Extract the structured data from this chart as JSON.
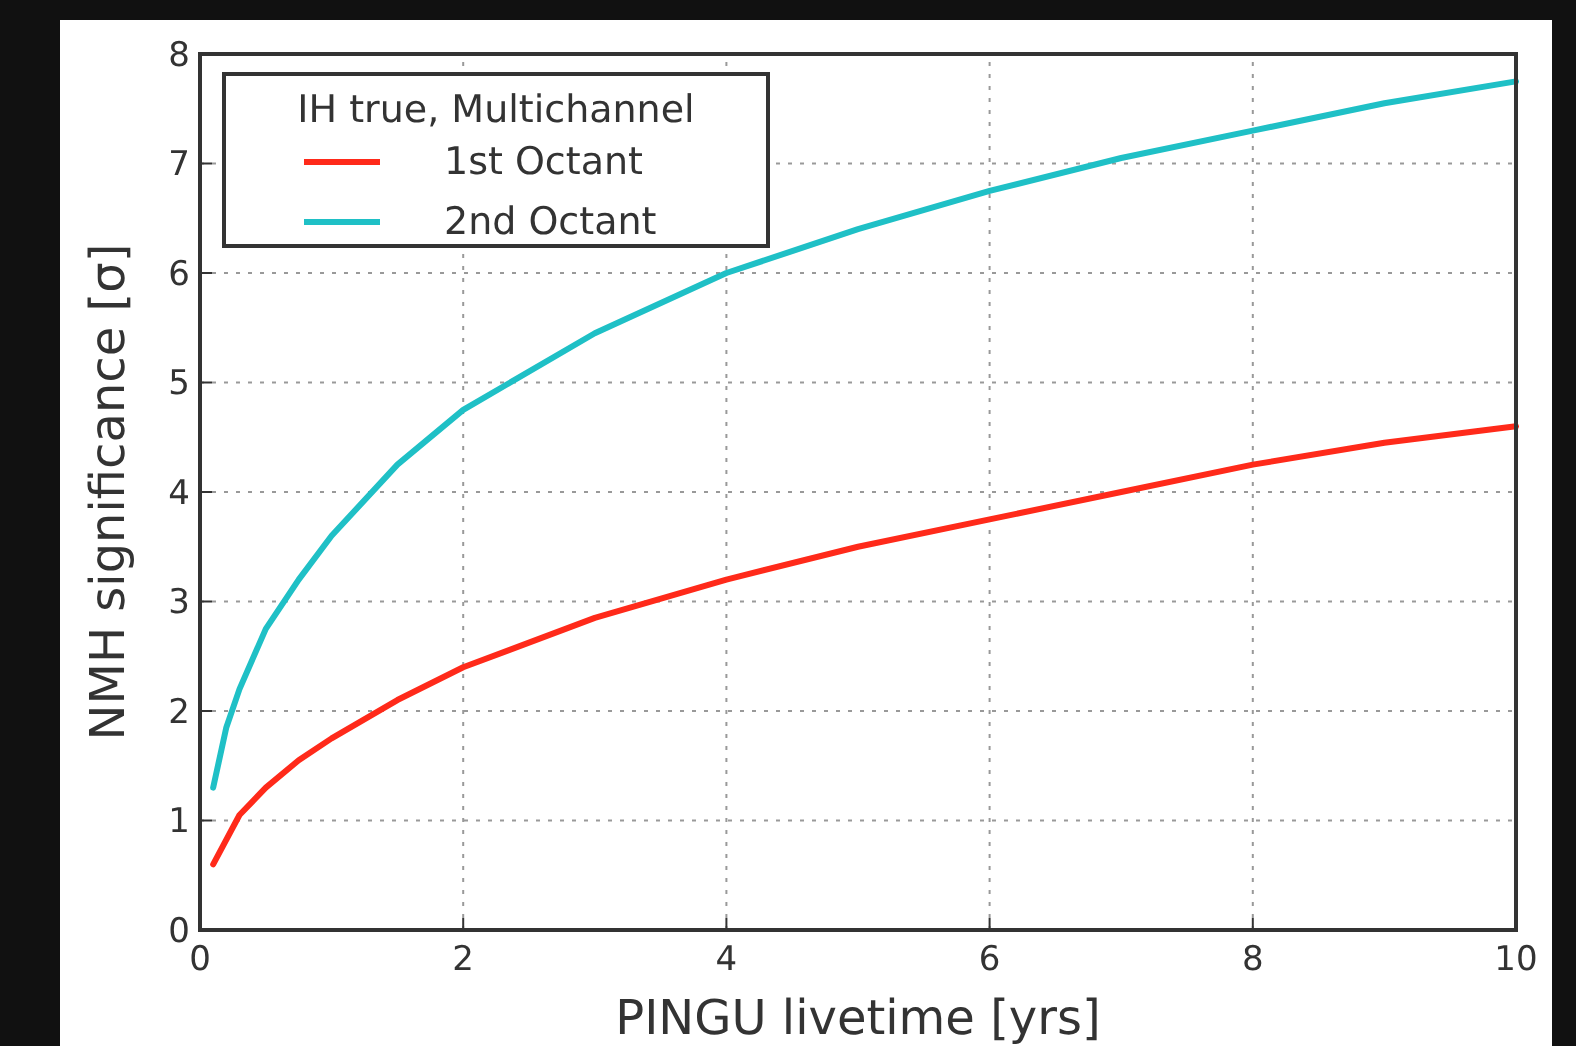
{
  "chart_data": {
    "type": "line",
    "xlabel": "PINGU livetime [yrs]",
    "ylabel": "NMH significance [σ]",
    "legend_title": "IH true, Multichannel",
    "legend": "top left",
    "grid": true,
    "line_style": "solid",
    "marker": "none",
    "xlim": [
      0,
      10
    ],
    "ylim": [
      0,
      8
    ],
    "xticks": [
      0,
      2,
      4,
      6,
      8,
      10
    ],
    "yticks": [
      0,
      1,
      2,
      3,
      4,
      5,
      6,
      7,
      8
    ],
    "series": [
      {
        "name": "1st Octant",
        "color": "#ff2a1a",
        "x": [
          0.1,
          0.3,
          0.5,
          0.75,
          1,
          1.5,
          2,
          3,
          4,
          5,
          6,
          7,
          8,
          9,
          10
        ],
        "values": [
          0.6,
          1.05,
          1.3,
          1.55,
          1.75,
          2.1,
          2.4,
          2.85,
          3.2,
          3.5,
          3.75,
          4.0,
          4.25,
          4.45,
          4.6
        ]
      },
      {
        "name": "2nd Octant",
        "color": "#1fc0c6",
        "x": [
          0.1,
          0.2,
          0.3,
          0.5,
          0.75,
          1,
          1.5,
          2,
          3,
          4,
          5,
          6,
          7,
          8,
          9,
          10
        ],
        "values": [
          1.3,
          1.85,
          2.2,
          2.75,
          3.2,
          3.6,
          4.25,
          4.75,
          5.45,
          6.0,
          6.4,
          6.75,
          7.05,
          7.3,
          7.55,
          7.75
        ]
      }
    ]
  }
}
